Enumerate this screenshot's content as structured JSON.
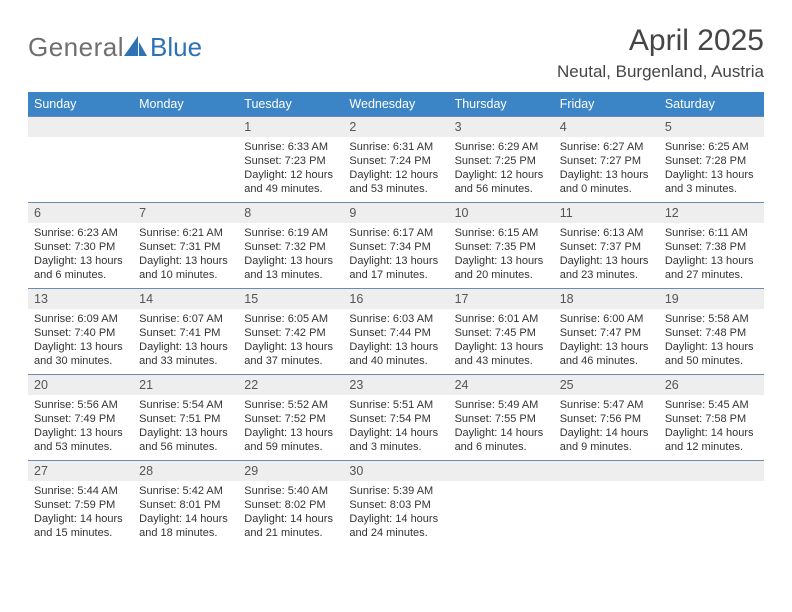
{
  "logo": {
    "word1": "General",
    "word2": "Blue"
  },
  "title": "April 2025",
  "location": "Neutal, Burgenland, Austria",
  "colors": {
    "header_bg": "#3b85c6",
    "header_text": "#ffffff",
    "daynum_bg": "#eeeeee",
    "rule": "#6b8caf",
    "logo_gray": "#6f6f6f",
    "logo_blue": "#2e72b6",
    "tri_fill": "#2e72b6"
  },
  "weekdays": [
    "Sunday",
    "Monday",
    "Tuesday",
    "Wednesday",
    "Thursday",
    "Friday",
    "Saturday"
  ],
  "weeks": [
    [
      {
        "blank": true
      },
      {
        "blank": true
      },
      {
        "num": "1",
        "sunrise": "Sunrise: 6:33 AM",
        "sunset": "Sunset: 7:23 PM",
        "daylight": "Daylight: 12 hours and 49 minutes."
      },
      {
        "num": "2",
        "sunrise": "Sunrise: 6:31 AM",
        "sunset": "Sunset: 7:24 PM",
        "daylight": "Daylight: 12 hours and 53 minutes."
      },
      {
        "num": "3",
        "sunrise": "Sunrise: 6:29 AM",
        "sunset": "Sunset: 7:25 PM",
        "daylight": "Daylight: 12 hours and 56 minutes."
      },
      {
        "num": "4",
        "sunrise": "Sunrise: 6:27 AM",
        "sunset": "Sunset: 7:27 PM",
        "daylight": "Daylight: 13 hours and 0 minutes."
      },
      {
        "num": "5",
        "sunrise": "Sunrise: 6:25 AM",
        "sunset": "Sunset: 7:28 PM",
        "daylight": "Daylight: 13 hours and 3 minutes."
      }
    ],
    [
      {
        "num": "6",
        "sunrise": "Sunrise: 6:23 AM",
        "sunset": "Sunset: 7:30 PM",
        "daylight": "Daylight: 13 hours and 6 minutes."
      },
      {
        "num": "7",
        "sunrise": "Sunrise: 6:21 AM",
        "sunset": "Sunset: 7:31 PM",
        "daylight": "Daylight: 13 hours and 10 minutes."
      },
      {
        "num": "8",
        "sunrise": "Sunrise: 6:19 AM",
        "sunset": "Sunset: 7:32 PM",
        "daylight": "Daylight: 13 hours and 13 minutes."
      },
      {
        "num": "9",
        "sunrise": "Sunrise: 6:17 AM",
        "sunset": "Sunset: 7:34 PM",
        "daylight": "Daylight: 13 hours and 17 minutes."
      },
      {
        "num": "10",
        "sunrise": "Sunrise: 6:15 AM",
        "sunset": "Sunset: 7:35 PM",
        "daylight": "Daylight: 13 hours and 20 minutes."
      },
      {
        "num": "11",
        "sunrise": "Sunrise: 6:13 AM",
        "sunset": "Sunset: 7:37 PM",
        "daylight": "Daylight: 13 hours and 23 minutes."
      },
      {
        "num": "12",
        "sunrise": "Sunrise: 6:11 AM",
        "sunset": "Sunset: 7:38 PM",
        "daylight": "Daylight: 13 hours and 27 minutes."
      }
    ],
    [
      {
        "num": "13",
        "sunrise": "Sunrise: 6:09 AM",
        "sunset": "Sunset: 7:40 PM",
        "daylight": "Daylight: 13 hours and 30 minutes."
      },
      {
        "num": "14",
        "sunrise": "Sunrise: 6:07 AM",
        "sunset": "Sunset: 7:41 PM",
        "daylight": "Daylight: 13 hours and 33 minutes."
      },
      {
        "num": "15",
        "sunrise": "Sunrise: 6:05 AM",
        "sunset": "Sunset: 7:42 PM",
        "daylight": "Daylight: 13 hours and 37 minutes."
      },
      {
        "num": "16",
        "sunrise": "Sunrise: 6:03 AM",
        "sunset": "Sunset: 7:44 PM",
        "daylight": "Daylight: 13 hours and 40 minutes."
      },
      {
        "num": "17",
        "sunrise": "Sunrise: 6:01 AM",
        "sunset": "Sunset: 7:45 PM",
        "daylight": "Daylight: 13 hours and 43 minutes."
      },
      {
        "num": "18",
        "sunrise": "Sunrise: 6:00 AM",
        "sunset": "Sunset: 7:47 PM",
        "daylight": "Daylight: 13 hours and 46 minutes."
      },
      {
        "num": "19",
        "sunrise": "Sunrise: 5:58 AM",
        "sunset": "Sunset: 7:48 PM",
        "daylight": "Daylight: 13 hours and 50 minutes."
      }
    ],
    [
      {
        "num": "20",
        "sunrise": "Sunrise: 5:56 AM",
        "sunset": "Sunset: 7:49 PM",
        "daylight": "Daylight: 13 hours and 53 minutes."
      },
      {
        "num": "21",
        "sunrise": "Sunrise: 5:54 AM",
        "sunset": "Sunset: 7:51 PM",
        "daylight": "Daylight: 13 hours and 56 minutes."
      },
      {
        "num": "22",
        "sunrise": "Sunrise: 5:52 AM",
        "sunset": "Sunset: 7:52 PM",
        "daylight": "Daylight: 13 hours and 59 minutes."
      },
      {
        "num": "23",
        "sunrise": "Sunrise: 5:51 AM",
        "sunset": "Sunset: 7:54 PM",
        "daylight": "Daylight: 14 hours and 3 minutes."
      },
      {
        "num": "24",
        "sunrise": "Sunrise: 5:49 AM",
        "sunset": "Sunset: 7:55 PM",
        "daylight": "Daylight: 14 hours and 6 minutes."
      },
      {
        "num": "25",
        "sunrise": "Sunrise: 5:47 AM",
        "sunset": "Sunset: 7:56 PM",
        "daylight": "Daylight: 14 hours and 9 minutes."
      },
      {
        "num": "26",
        "sunrise": "Sunrise: 5:45 AM",
        "sunset": "Sunset: 7:58 PM",
        "daylight": "Daylight: 14 hours and 12 minutes."
      }
    ],
    [
      {
        "num": "27",
        "sunrise": "Sunrise: 5:44 AM",
        "sunset": "Sunset: 7:59 PM",
        "daylight": "Daylight: 14 hours and 15 minutes."
      },
      {
        "num": "28",
        "sunrise": "Sunrise: 5:42 AM",
        "sunset": "Sunset: 8:01 PM",
        "daylight": "Daylight: 14 hours and 18 minutes."
      },
      {
        "num": "29",
        "sunrise": "Sunrise: 5:40 AM",
        "sunset": "Sunset: 8:02 PM",
        "daylight": "Daylight: 14 hours and 21 minutes."
      },
      {
        "num": "30",
        "sunrise": "Sunrise: 5:39 AM",
        "sunset": "Sunset: 8:03 PM",
        "daylight": "Daylight: 14 hours and 24 minutes."
      },
      {
        "blank": true
      },
      {
        "blank": true
      },
      {
        "blank": true
      }
    ]
  ]
}
